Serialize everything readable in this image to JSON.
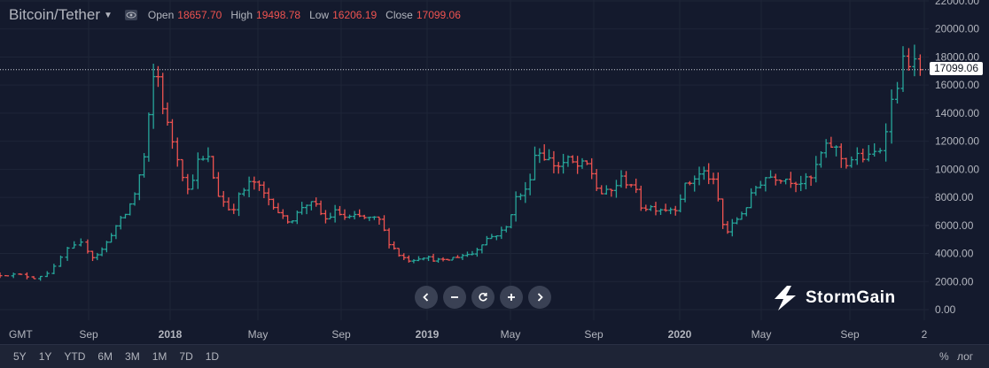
{
  "header": {
    "symbol": "Bitcoin/Tether",
    "ohlc": [
      {
        "label": "Open",
        "value": "18657.70"
      },
      {
        "label": "High",
        "value": "19498.78"
      },
      {
        "label": "Low",
        "value": "16206.19"
      },
      {
        "label": "Close",
        "value": "17099.06"
      }
    ]
  },
  "timezone": "GMT",
  "last_price": "17099.06",
  "brand": "StormGain",
  "ranges": [
    "5Y",
    "1Y",
    "YTD",
    "6M",
    "3M",
    "1M",
    "7D",
    "1D"
  ],
  "scale_buttons": {
    "percent": "%",
    "log": "лог"
  },
  "nav_buttons": [
    "scroll-left",
    "zoom-out",
    "reset",
    "zoom-in",
    "scroll-right"
  ],
  "colors": {
    "up": "#26a69a",
    "down": "#ef5350",
    "background": "#141a2d"
  },
  "chart_data": {
    "type": "ohlc",
    "series_name": "Bitcoin/Tether",
    "interval": "weekly",
    "x_ticks": [
      "Sep",
      "2018",
      "May",
      "Sep",
      "2019",
      "May",
      "Sep",
      "2020",
      "May",
      "Sep",
      "2"
    ],
    "y_ticks": [
      "22000.00",
      "20000.00",
      "18000.00",
      "16000.00",
      "14000.00",
      "12000.00",
      "10000.00",
      "8000.00",
      "6000.00",
      "4000.00",
      "2000.00",
      "0.00"
    ],
    "ylim": [
      0,
      22000
    ],
    "last_close": 17099.06,
    "keypoints": [
      [
        "2017-06-01",
        2500
      ],
      [
        "2017-06-15",
        2500
      ],
      [
        "2017-07-01",
        2450
      ],
      [
        "2017-07-15",
        2250
      ],
      [
        "2017-08-01",
        2800
      ],
      [
        "2017-08-15",
        4200
      ],
      [
        "2017-09-01",
        4700
      ],
      [
        "2017-09-15",
        3700
      ],
      [
        "2017-10-01",
        4400
      ],
      [
        "2017-10-15",
        5700
      ],
      [
        "2017-11-01",
        6700
      ],
      [
        "2017-11-15",
        8100
      ],
      [
        "2017-12-01",
        11000
      ],
      [
        "2017-12-17",
        17700
      ],
      [
        "2018-01-01",
        13500
      ],
      [
        "2018-01-15",
        11500
      ],
      [
        "2018-02-01",
        8500
      ],
      [
        "2018-02-15",
        10500
      ],
      [
        "2018-03-01",
        10700
      ],
      [
        "2018-03-15",
        8200
      ],
      [
        "2018-04-01",
        7000
      ],
      [
        "2018-04-15",
        8300
      ],
      [
        "2018-05-01",
        9200
      ],
      [
        "2018-05-15",
        8300
      ],
      [
        "2018-06-01",
        7500
      ],
      [
        "2018-06-15",
        6400
      ],
      [
        "2018-07-01",
        6500
      ],
      [
        "2018-07-15",
        7600
      ],
      [
        "2018-08-01",
        7400
      ],
      [
        "2018-08-15",
        6400
      ],
      [
        "2018-09-01",
        7000
      ],
      [
        "2018-09-15",
        6500
      ],
      [
        "2018-10-01",
        6600
      ],
      [
        "2018-10-15",
        6500
      ],
      [
        "2018-11-01",
        6350
      ],
      [
        "2018-11-15",
        4800
      ],
      [
        "2018-12-01",
        3800
      ],
      [
        "2018-12-15",
        3500
      ],
      [
        "2019-01-01",
        3800
      ],
      [
        "2019-01-15",
        3600
      ],
      [
        "2019-02-01",
        3450
      ],
      [
        "2019-02-15",
        3700
      ],
      [
        "2019-03-01",
        3900
      ],
      [
        "2019-03-15",
        4000
      ],
      [
        "2019-04-01",
        5000
      ],
      [
        "2019-04-15",
        5300
      ],
      [
        "2019-05-01",
        5700
      ],
      [
        "2019-05-15",
        7900
      ],
      [
        "2019-06-01",
        8500
      ],
      [
        "2019-06-15",
        11500
      ],
      [
        "2019-07-01",
        10800
      ],
      [
        "2019-07-15",
        10200
      ],
      [
        "2019-08-01",
        10600
      ],
      [
        "2019-08-15",
        10200
      ],
      [
        "2019-09-01",
        10300
      ],
      [
        "2019-09-15",
        8300
      ],
      [
        "2019-10-01",
        8300
      ],
      [
        "2019-10-15",
        9300
      ],
      [
        "2019-11-01",
        9000
      ],
      [
        "2019-11-15",
        7300
      ],
      [
        "2019-12-01",
        7300
      ],
      [
        "2019-12-15",
        7200
      ],
      [
        "2020-01-01",
        7200
      ],
      [
        "2020-01-15",
        8700
      ],
      [
        "2020-02-01",
        9500
      ],
      [
        "2020-02-15",
        9800
      ],
      [
        "2020-03-01",
        8800
      ],
      [
        "2020-03-15",
        5300
      ],
      [
        "2020-04-01",
        6400
      ],
      [
        "2020-04-15",
        7300
      ],
      [
        "2020-05-01",
        8800
      ],
      [
        "2020-05-15",
        9500
      ],
      [
        "2020-06-01",
        9500
      ],
      [
        "2020-06-15",
        9300
      ],
      [
        "2020-07-01",
        9100
      ],
      [
        "2020-07-15",
        9200
      ],
      [
        "2020-08-01",
        11300
      ],
      [
        "2020-08-15",
        11800
      ],
      [
        "2020-09-01",
        10400
      ],
      [
        "2020-09-15",
        10900
      ],
      [
        "2020-10-01",
        10800
      ],
      [
        "2020-10-15",
        11500
      ],
      [
        "2020-11-01",
        15500
      ],
      [
        "2020-11-15",
        18100
      ],
      [
        "2020-11-30",
        17099
      ]
    ]
  }
}
